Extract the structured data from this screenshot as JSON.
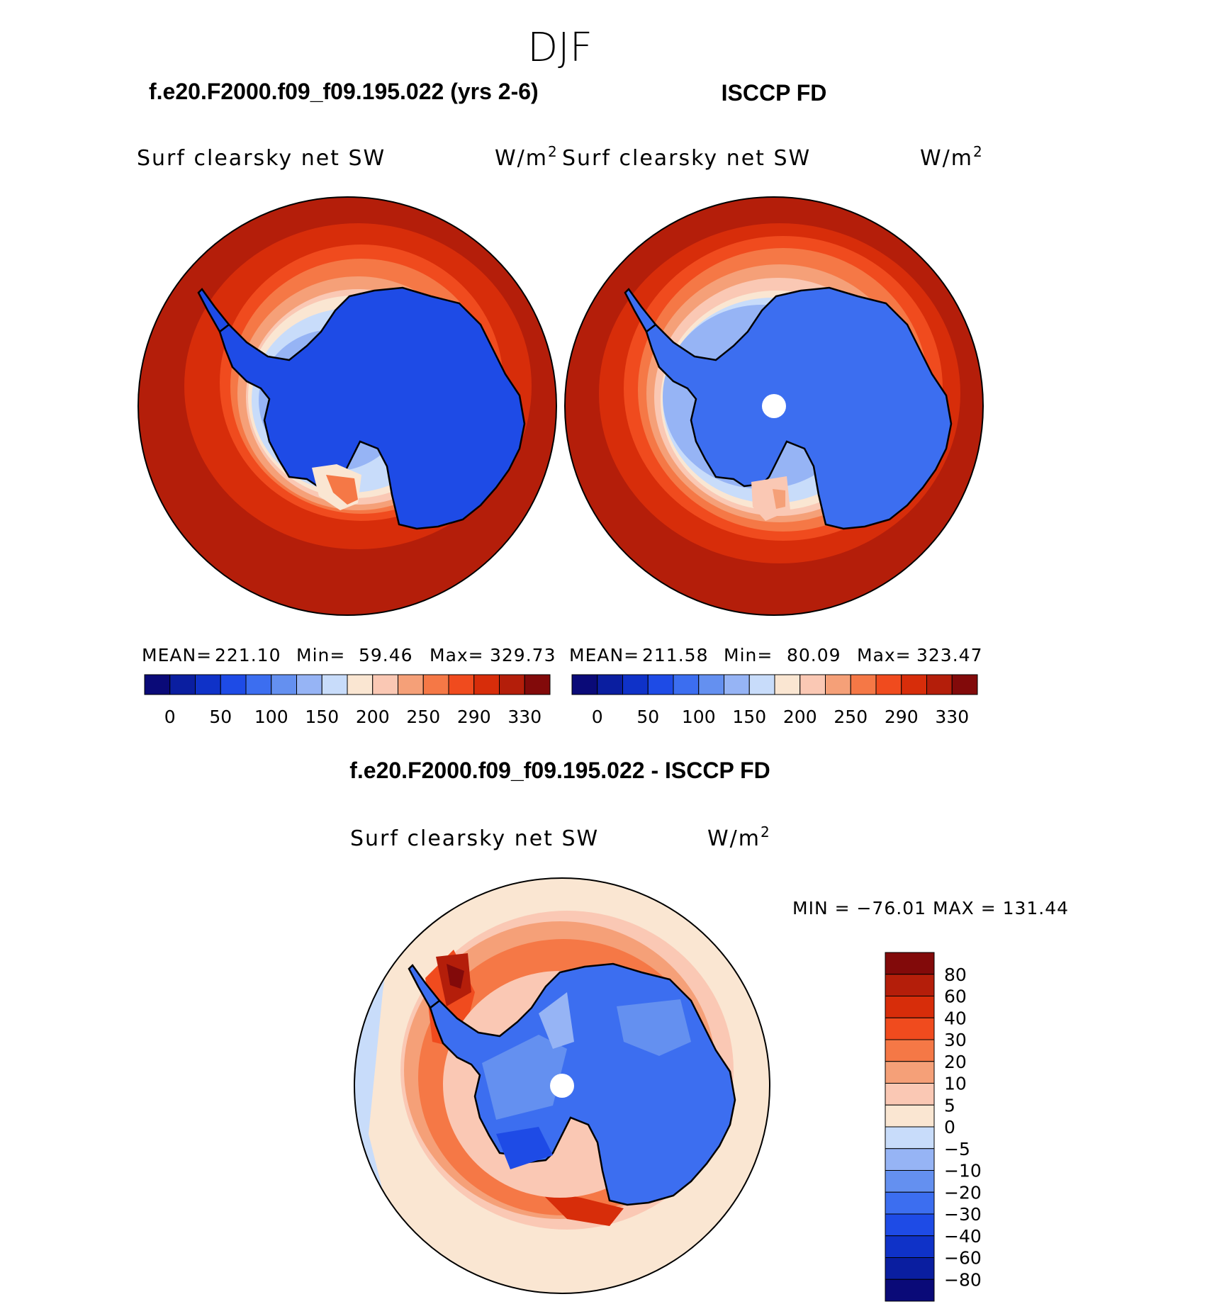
{
  "title": "DJF",
  "panels": [
    {
      "case_title": "f.e20.F2000.f09_f09.195.022 (yrs 2-6)",
      "variable": "Surf clearsky net SW",
      "units": "W/m",
      "units_exp": "2",
      "stats": {
        "mean_label": "MEAN=",
        "mean": "221.10",
        "min_label": "Min=",
        "min": "59.46",
        "max_label": "Max=",
        "max": "329.73"
      }
    },
    {
      "case_title": "ISCCP FD",
      "variable": "Surf clearsky net SW",
      "units": "W/m",
      "units_exp": "2",
      "stats": {
        "mean_label": "MEAN=",
        "mean": "211.58",
        "min_label": "Min=",
        "min": "80.09",
        "max_label": "Max=",
        "max": "323.47"
      }
    }
  ],
  "diff": {
    "title": "f.e20.F2000.f09_f09.195.022 - ISCCP FD",
    "variable": "Surf clearsky net SW",
    "units": "W/m",
    "units_exp": "2",
    "minmax": "MIN = −76.01  MAX = 131.44"
  },
  "colorbar_main": {
    "colors": [
      "#0a0a78",
      "#0a1ea0",
      "#0f32c8",
      "#1e4be6",
      "#3c6ef0",
      "#6490f0",
      "#96b4f5",
      "#c8dcfa",
      "#fae6d2",
      "#fac8b4",
      "#f5a078",
      "#f57846",
      "#f04b1e",
      "#d72d0a",
      "#b41e0a",
      "#820a0a"
    ],
    "ticks": [
      "0",
      "50",
      "100",
      "150",
      "200",
      "250",
      "290",
      "330"
    ]
  },
  "colorbar_diff": {
    "colors": [
      "#0a0a78",
      "#0a1ea0",
      "#0f32c8",
      "#1e4be6",
      "#3c6ef0",
      "#6490f0",
      "#96b4f5",
      "#c8dcfa",
      "#fae6d2",
      "#fac8b4",
      "#f5a078",
      "#f57846",
      "#f04b1e",
      "#d72d0a",
      "#b41e0a",
      "#820a0a"
    ],
    "ticks": [
      "80",
      "60",
      "40",
      "30",
      "20",
      "10",
      "5",
      "0",
      "−5",
      "−10",
      "−20",
      "−30",
      "−40",
      "−60",
      "−80"
    ]
  }
}
